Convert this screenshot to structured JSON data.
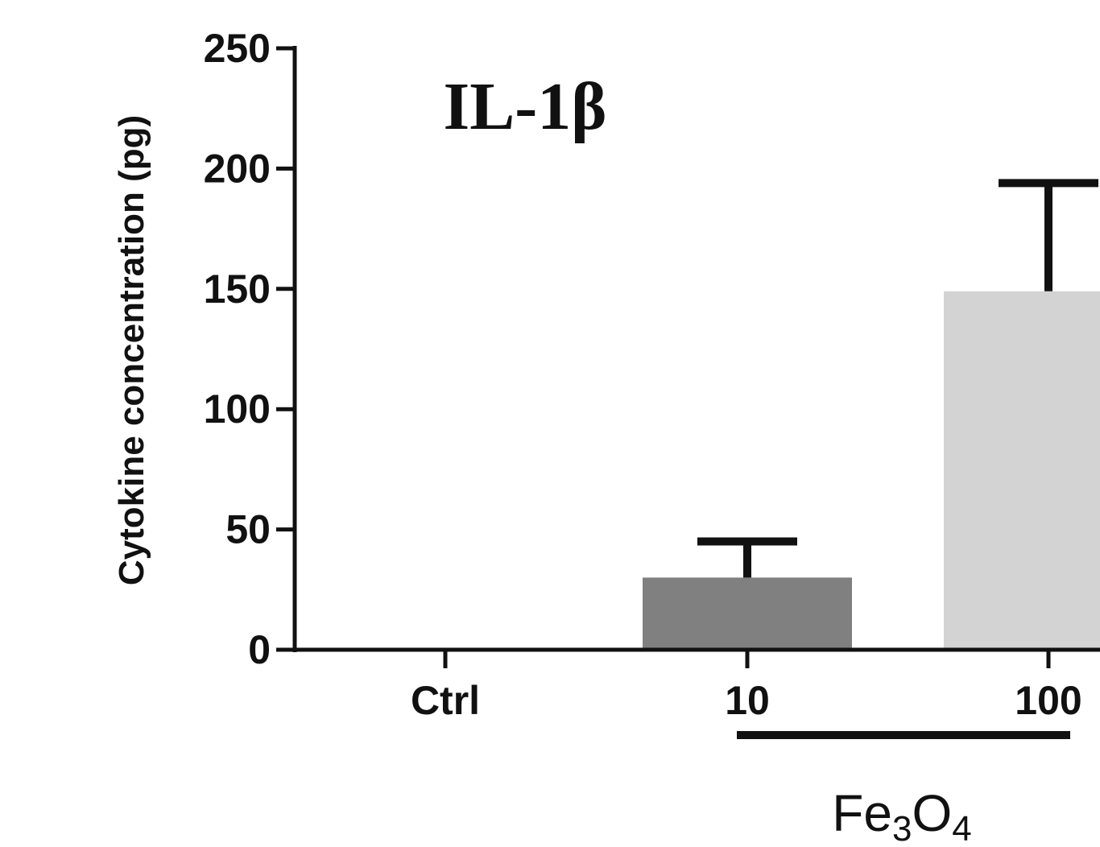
{
  "chart_data": {
    "type": "bar",
    "title": "IL-1β",
    "ylabel": "Cytokine concentration (pg)",
    "xlabel": "",
    "categories": [
      "Ctrl",
      "10",
      "100"
    ],
    "values": [
      0,
      30,
      149
    ],
    "error_upper": [
      0,
      45,
      194
    ],
    "ylim": [
      0,
      250
    ],
    "yticks": [
      "0",
      "50",
      "100",
      "150",
      "200",
      "250"
    ],
    "bar_colors": [
      "#ffffff",
      "#808080",
      "#d3d3d3"
    ],
    "grid": false,
    "group_label": {
      "text_main": "Fe",
      "sub1": "3",
      "text_mid": "O",
      "sub2": "4",
      "categories": [
        "10",
        "100"
      ]
    }
  }
}
